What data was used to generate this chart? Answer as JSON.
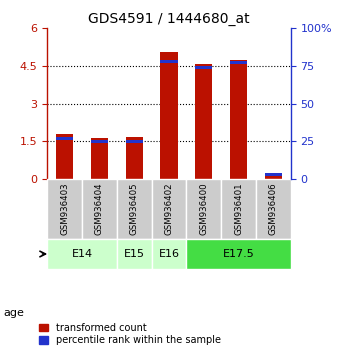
{
  "title": "GDS4591 / 1444680_at",
  "samples": [
    "GSM936403",
    "GSM936404",
    "GSM936405",
    "GSM936402",
    "GSM936400",
    "GSM936401",
    "GSM936406"
  ],
  "red_values": [
    1.78,
    1.63,
    1.68,
    5.05,
    4.58,
    4.75,
    0.22
  ],
  "blue_pct": [
    26.5,
    25.0,
    25.0,
    78.0,
    74.0,
    77.5,
    3.0
  ],
  "ylim_left": [
    0,
    6
  ],
  "ylim_right": [
    0,
    100
  ],
  "yticks_left": [
    0,
    1.5,
    3.0,
    4.5,
    6
  ],
  "ytick_labels_left": [
    "0",
    "1.5",
    "3",
    "4.5",
    "6"
  ],
  "yticks_right": [
    0,
    25,
    50,
    75,
    100
  ],
  "ytick_labels_right": [
    "0",
    "25",
    "50",
    "75",
    "100%"
  ],
  "age_groups": [
    {
      "label": "E14",
      "indices": [
        0,
        1
      ],
      "color": "#ccffcc"
    },
    {
      "label": "E15",
      "indices": [
        2
      ],
      "color": "#ccffcc"
    },
    {
      "label": "E16",
      "indices": [
        3
      ],
      "color": "#ccffcc"
    },
    {
      "label": "E17.5",
      "indices": [
        4,
        5,
        6
      ],
      "color": "#44dd44"
    }
  ],
  "bar_width": 0.5,
  "red_color": "#bb1100",
  "blue_color": "#2233cc",
  "label_bg": "#cccccc",
  "legend_red": "transformed count",
  "legend_blue": "percentile rank within the sample",
  "age_label": "age"
}
